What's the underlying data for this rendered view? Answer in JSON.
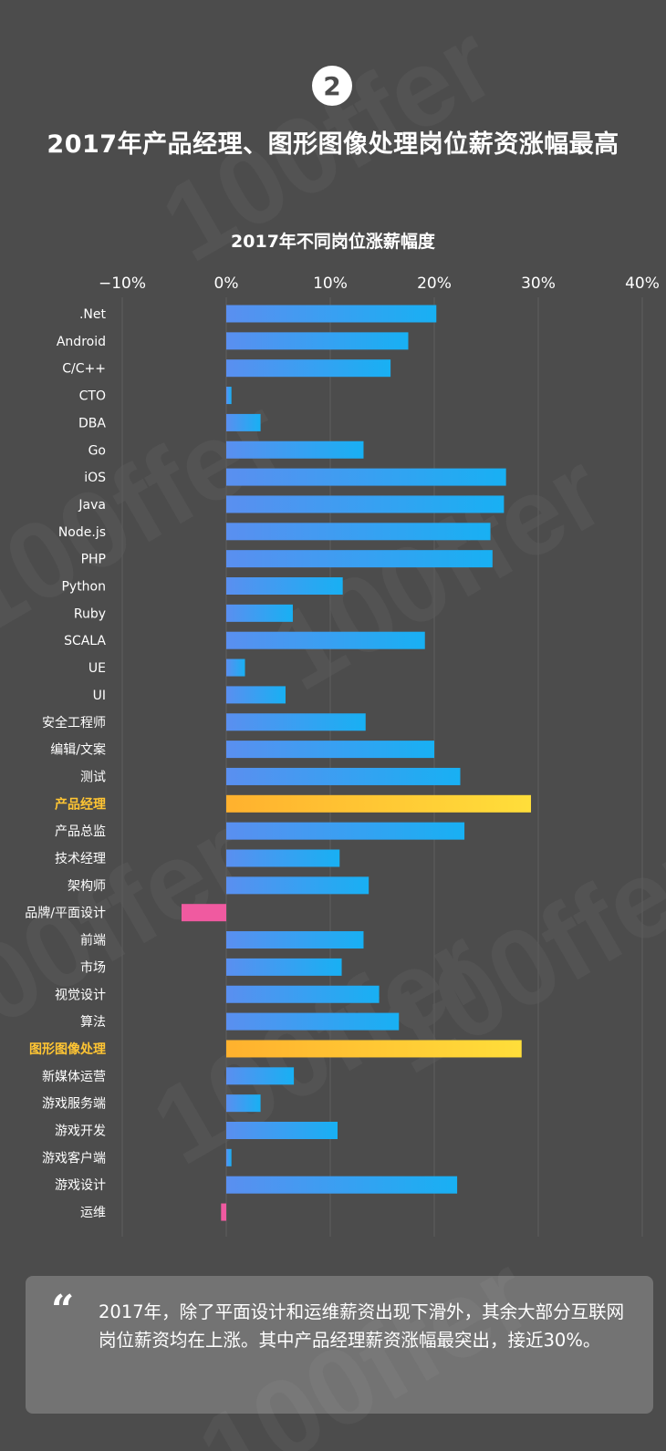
{
  "badge": "2",
  "headline": "2017年产品经理、图形图像处理岗位薪资涨幅最高",
  "watermark_text": "100ffer",
  "colors": {
    "background": "#4c4c4c",
    "bar_blue_start": "#5a8ff0",
    "bar_blue_end": "#18b0f3",
    "bar_gold_start": "#ffb12e",
    "bar_gold_end": "#ffde3a",
    "bar_pink": "#f05aa0",
    "highlight_label": "#ffc533"
  },
  "chart_data": {
    "type": "bar",
    "orientation": "horizontal",
    "title": "2017年不同岗位涨薪幅度",
    "xlim": [
      -10,
      40
    ],
    "x_ticks": [
      -10,
      0,
      10,
      20,
      30,
      40
    ],
    "x_tick_labels": [
      "−10%",
      "0%",
      "10%",
      "20%",
      "30%",
      "40%"
    ],
    "grid": true,
    "axis_position": "top",
    "categories": [
      ".Net",
      "Android",
      "C/C++",
      "CTO",
      "DBA",
      "Go",
      "iOS",
      "Java",
      "Node.js",
      "PHP",
      "Python",
      "Ruby",
      "SCALA",
      "UE",
      "UI",
      "安全工程师",
      "编辑/文案",
      "测试",
      "产品经理",
      "产品总监",
      "技术经理",
      "架构师",
      "品牌/平面设计",
      "前端",
      "市场",
      "视觉设计",
      "算法",
      "图形图像处理",
      "新媒体运营",
      "游戏服务端",
      "游戏开发",
      "游戏客户端",
      "游戏设计",
      "运维"
    ],
    "values": [
      20.2,
      17.5,
      15.8,
      0.5,
      3.3,
      13.2,
      26.9,
      26.7,
      25.4,
      25.6,
      11.2,
      6.4,
      19.1,
      1.8,
      5.7,
      13.4,
      20.0,
      22.5,
      29.3,
      22.9,
      10.9,
      13.7,
      -4.3,
      13.2,
      11.1,
      14.7,
      16.6,
      28.4,
      6.5,
      3.3,
      10.7,
      0.5,
      22.2,
      -0.5
    ],
    "highlighted": [
      "产品经理",
      "图形图像处理"
    ]
  },
  "quote": {
    "mark": "“",
    "text": "2017年，除了平面设计和运维薪资出现下滑外，其余大部分互联网岗位薪资均在上涨。其中产品经理薪资涨幅最突出，接近30%。"
  }
}
